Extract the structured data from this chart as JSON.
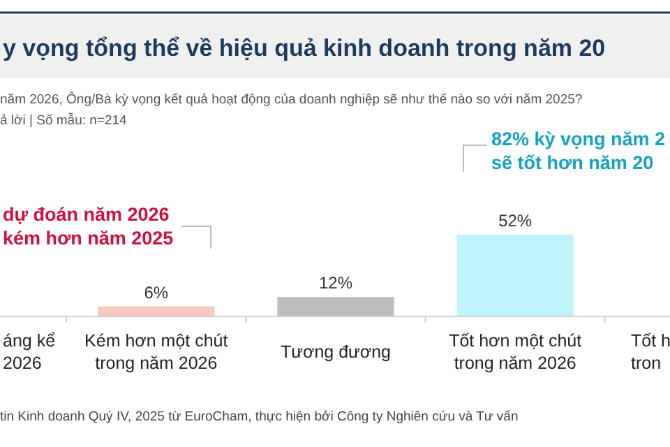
{
  "chart_data": {
    "type": "bar",
    "title": "y vọng tổng thể về hiệu quả kinh doanh trong năm 20",
    "subtitle": "năm 2026, Ông/Bà kỳ vọng kết quả hoạt động của doanh nghiệp sẽ như thế nào so với năm 2025?\nả lời | Số mẫu: n=214",
    "categories": [
      "áng kể\n2026",
      "Kém hơn một chút\ntrong năm 2026",
      "Tương đương",
      "Tốt hơn một chút\ntrong năm 2026",
      "Tốt h\ntron"
    ],
    "values": [
      null,
      6,
      12,
      52,
      null
    ],
    "colors": [
      null,
      "#f9c8bc",
      "#bebebe",
      "#bff4fb",
      null
    ],
    "value_labels": [
      null,
      "6%",
      "12%",
      "52%",
      null
    ],
    "annotations": [
      "dự đoán năm 2026\nkém hơn năm 2025",
      "82% kỳ vọng năm 2\nsẽ tốt hơn năm 20",
      "tin Kinh doanh Quý IV, 2025 từ EuroCham, thực hiện bởi Công ty Nghiên cứu và Tư vấn"
    ]
  }
}
